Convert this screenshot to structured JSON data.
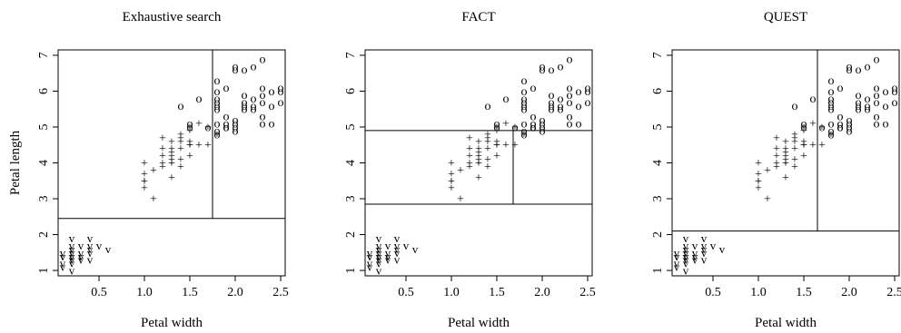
{
  "chart_data": [
    {
      "type": "scatter",
      "title": "Exhaustive search",
      "xlabel": "Petal width",
      "ylabel": "Petal length",
      "xlim": [
        0.05,
        2.55
      ],
      "ylim": [
        0.85,
        7.15
      ],
      "xticks": [
        0.5,
        1.0,
        1.5,
        2.0,
        2.5
      ],
      "yticks": [
        1,
        2,
        3,
        4,
        5,
        6,
        7
      ],
      "splits": [
        {
          "orient": "h",
          "value": 2.45,
          "from": 0.05,
          "to": 2.55
        },
        {
          "orient": "v",
          "value": 1.75,
          "from": 2.45,
          "to": 7.15
        }
      ]
    },
    {
      "type": "scatter",
      "title": "FACT",
      "xlabel": "Petal width",
      "ylabel": "",
      "xlim": [
        0.05,
        2.55
      ],
      "ylim": [
        0.85,
        7.15
      ],
      "xticks": [
        0.5,
        1.0,
        1.5,
        2.0,
        2.5
      ],
      "yticks": [
        1,
        2,
        3,
        4,
        5,
        6,
        7
      ],
      "splits": [
        {
          "orient": "h",
          "value": 2.85,
          "from": 0.05,
          "to": 2.55
        },
        {
          "orient": "h",
          "value": 4.9,
          "from": 0.05,
          "to": 2.55
        },
        {
          "orient": "v",
          "value": 1.68,
          "from": 2.85,
          "to": 4.9
        }
      ]
    },
    {
      "type": "scatter",
      "title": "QUEST",
      "xlabel": "Petal width",
      "ylabel": "",
      "xlim": [
        0.05,
        2.55
      ],
      "ylim": [
        0.85,
        7.15
      ],
      "xticks": [
        0.5,
        1.0,
        1.5,
        2.0,
        2.5
      ],
      "yticks": [
        1,
        2,
        3,
        4,
        5,
        6,
        7
      ],
      "splits": [
        {
          "orient": "h",
          "value": 2.1,
          "from": 0.05,
          "to": 2.55
        },
        {
          "orient": "v",
          "value": 1.65,
          "from": 2.1,
          "to": 7.15
        }
      ]
    }
  ],
  "series": [
    {
      "symbol": "v",
      "points": [
        [
          0.1,
          1.4
        ],
        [
          0.1,
          1.5
        ],
        [
          0.1,
          1.1
        ],
        [
          0.1,
          1.4
        ],
        [
          0.2,
          1.4
        ],
        [
          0.2,
          1.3
        ],
        [
          0.2,
          1.5
        ],
        [
          0.2,
          1.4
        ],
        [
          0.2,
          1.6
        ],
        [
          0.2,
          1.2
        ],
        [
          0.2,
          1.7
        ],
        [
          0.2,
          1.0
        ],
        [
          0.2,
          1.9
        ],
        [
          0.2,
          1.5
        ],
        [
          0.2,
          1.3
        ],
        [
          0.2,
          1.4
        ],
        [
          0.3,
          1.4
        ],
        [
          0.3,
          1.3
        ],
        [
          0.3,
          1.5
        ],
        [
          0.3,
          1.7
        ],
        [
          0.4,
          1.5
        ],
        [
          0.4,
          1.7
        ],
        [
          0.4,
          1.9
        ],
        [
          0.4,
          1.3
        ],
        [
          0.5,
          1.7
        ],
        [
          0.6,
          1.6
        ],
        [
          0.1,
          1.2
        ],
        [
          0.2,
          1.6
        ],
        [
          0.4,
          1.6
        ],
        [
          0.3,
          1.4
        ]
      ]
    },
    {
      "symbol": "+",
      "points": [
        [
          1.0,
          3.3
        ],
        [
          1.0,
          3.5
        ],
        [
          1.0,
          4.0
        ],
        [
          1.0,
          3.7
        ],
        [
          1.0,
          3.5
        ],
        [
          1.1,
          3.0
        ],
        [
          1.1,
          3.8
        ],
        [
          1.2,
          3.9
        ],
        [
          1.2,
          4.0
        ],
        [
          1.2,
          4.4
        ],
        [
          1.2,
          4.2
        ],
        [
          1.3,
          4.0
        ],
        [
          1.3,
          4.1
        ],
        [
          1.3,
          4.4
        ],
        [
          1.3,
          4.2
        ],
        [
          1.3,
          3.6
        ],
        [
          1.3,
          4.3
        ],
        [
          1.3,
          4.0
        ],
        [
          1.4,
          4.7
        ],
        [
          1.4,
          4.4
        ],
        [
          1.4,
          4.6
        ],
        [
          1.4,
          4.8
        ],
        [
          1.4,
          4.1
        ],
        [
          1.5,
          4.5
        ],
        [
          1.5,
          4.9
        ],
        [
          1.5,
          4.5
        ],
        [
          1.5,
          4.2
        ],
        [
          1.5,
          4.6
        ],
        [
          1.5,
          4.5
        ],
        [
          1.6,
          4.5
        ],
        [
          1.6,
          5.1
        ],
        [
          1.7,
          4.5
        ],
        [
          1.7,
          5.0
        ],
        [
          1.8,
          4.8
        ],
        [
          1.4,
          3.9
        ],
        [
          1.2,
          4.7
        ],
        [
          1.5,
          5.0
        ],
        [
          1.3,
          4.6
        ]
      ]
    },
    {
      "symbol": "o",
      "points": [
        [
          1.4,
          5.6
        ],
        [
          1.5,
          5.1
        ],
        [
          1.5,
          5.0
        ],
        [
          1.6,
          5.8
        ],
        [
          1.8,
          5.1
        ],
        [
          1.8,
          4.8
        ],
        [
          1.8,
          4.9
        ],
        [
          1.8,
          5.5
        ],
        [
          1.8,
          6.0
        ],
        [
          1.8,
          5.6
        ],
        [
          1.8,
          6.3
        ],
        [
          1.8,
          5.7
        ],
        [
          1.9,
          5.0
        ],
        [
          1.9,
          5.1
        ],
        [
          1.9,
          6.1
        ],
        [
          1.9,
          5.3
        ],
        [
          2.0,
          5.0
        ],
        [
          2.0,
          5.1
        ],
        [
          2.0,
          5.2
        ],
        [
          2.0,
          6.7
        ],
        [
          2.0,
          6.6
        ],
        [
          2.1,
          5.5
        ],
        [
          2.1,
          5.6
        ],
        [
          2.1,
          5.9
        ],
        [
          2.1,
          6.6
        ],
        [
          2.2,
          5.5
        ],
        [
          2.2,
          6.7
        ],
        [
          2.2,
          5.8
        ],
        [
          2.3,
          5.7
        ],
        [
          2.3,
          5.1
        ],
        [
          2.3,
          5.3
        ],
        [
          2.3,
          5.9
        ],
        [
          2.3,
          6.1
        ],
        [
          2.3,
          6.9
        ],
        [
          2.4,
          5.1
        ],
        [
          2.4,
          5.6
        ],
        [
          2.4,
          6.0
        ],
        [
          2.5,
          5.7
        ],
        [
          2.5,
          6.1
        ],
        [
          2.5,
          6.0
        ],
        [
          1.8,
          5.8
        ],
        [
          1.9,
          5.0
        ],
        [
          2.0,
          4.9
        ],
        [
          1.7,
          5.0
        ],
        [
          2.2,
          5.6
        ],
        [
          2.1,
          5.7
        ]
      ]
    }
  ]
}
